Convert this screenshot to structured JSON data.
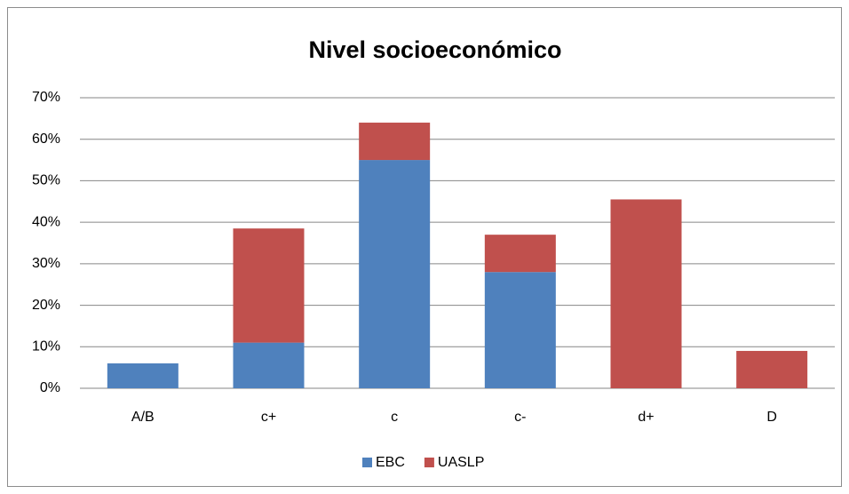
{
  "chart_data": {
    "type": "stacked_bar",
    "title": "Nivel socioeconómico",
    "categories": [
      "A/B",
      "c+",
      "c",
      "c-",
      "d+",
      "D"
    ],
    "series": [
      {
        "name": "EBC",
        "color": "#4f81bd",
        "values": [
          6,
          11,
          55,
          28,
          0,
          0
        ]
      },
      {
        "name": "UASLP",
        "color": "#c0504d",
        "values": [
          0,
          27.5,
          9,
          9,
          45.5,
          9
        ]
      }
    ],
    "ylim": [
      0,
      70
    ],
    "yticks": [
      {
        "value": 0,
        "label": "0%"
      },
      {
        "value": 10,
        "label": "10%"
      },
      {
        "value": 20,
        "label": "20%"
      },
      {
        "value": 30,
        "label": "30%"
      },
      {
        "value": 40,
        "label": "40%"
      },
      {
        "value": 50,
        "label": "50%"
      },
      {
        "value": 60,
        "label": "60%"
      },
      {
        "value": 70,
        "label": "70%"
      }
    ],
    "grid": true,
    "legend": "bottom"
  }
}
